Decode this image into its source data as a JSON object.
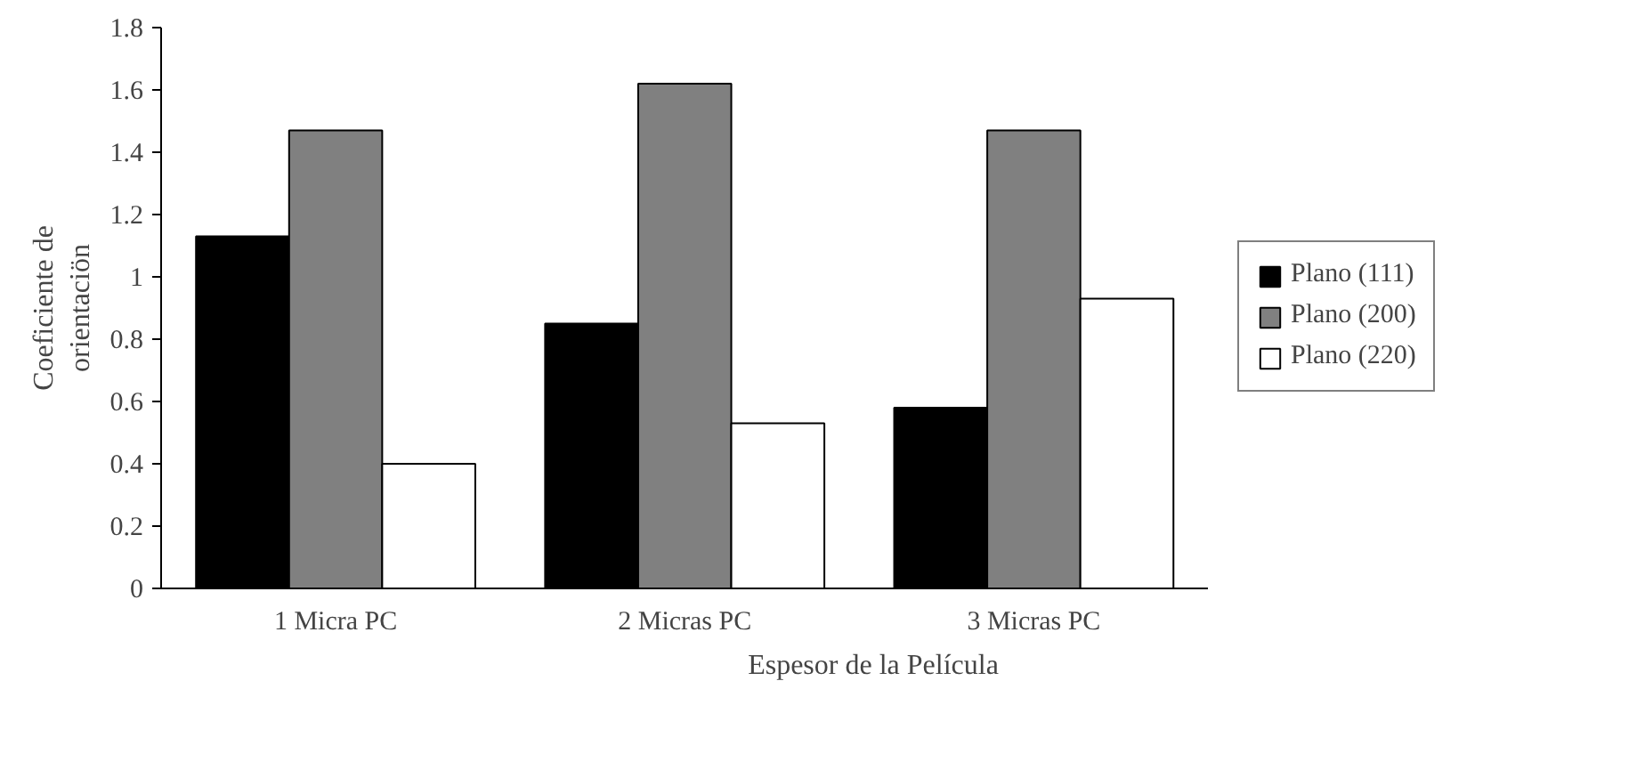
{
  "chart_data": {
    "type": "bar",
    "xlabel": "Espesor de la Película",
    "ylabel": "Coeficiente de\norientaciön",
    "categories": [
      "1 Micra PC",
      "2 Micras PC",
      "3 Micras PC"
    ],
    "series": [
      {
        "name": "Plano (111)",
        "color": "#000000",
        "values": [
          1.13,
          0.85,
          0.58
        ]
      },
      {
        "name": "Plano (200)",
        "color": "#808080",
        "values": [
          1.47,
          1.62,
          1.47
        ]
      },
      {
        "name": "Plano (220)",
        "color": "#ffffff",
        "values": [
          0.4,
          0.53,
          0.93
        ]
      }
    ],
    "ylim": [
      0,
      1.8
    ],
    "yticks": [
      0,
      0.2,
      0.4,
      0.6,
      0.8,
      1,
      1.2,
      1.4,
      1.6,
      1.8
    ],
    "grid": false,
    "legend": "right"
  }
}
